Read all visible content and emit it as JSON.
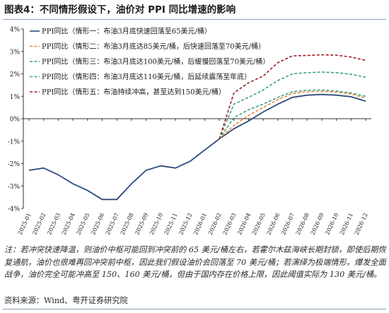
{
  "figure_title": "图表4：不同情形假设下，油价对 PPI 同比增速的影响",
  "note": "注：若冲突快速降温，则油价中枢可能回到冲突前的 65 美元/桶左右，若霍尔木兹海峡长期封锁，即使后期恢复通航，油价也很难再回冲突前中枢，因此我们假设油价会回落至 70 美元/桶；若演绎为极端情形，爆发全面战争，油价完全可能冲高至 150、160 美元/桶，但由于国内存在价格上限，因此阈值实际为 130 美元/桶。",
  "source": "资料来源：Wind、粤开证券研究院",
  "colors": {
    "s1": "#2e4a7d",
    "s2": "#e98a3b",
    "s3": "#3aa17e",
    "s4": "#3aa17e",
    "s5": "#a0202a",
    "axis": "#333333"
  },
  "chart_data": {
    "type": "line",
    "ylim": [
      -0.04,
      0.04
    ],
    "y_ticks": [
      "4%",
      "3%",
      "2%",
      "1%",
      "0%",
      "-1%",
      "-2%",
      "-3%",
      "-4%"
    ],
    "x_ticks": [
      "2025-01",
      "2025-02",
      "2025-03",
      "2025-04",
      "2025-05",
      "2025-06",
      "2025-07",
      "2025-08",
      "2025-09",
      "2025-10",
      "2025-11",
      "2025-12",
      "2026-01",
      "2026-02",
      "2026-03",
      "2026-04",
      "2026-05",
      "2026-06",
      "2026-07",
      "2026-08",
      "2026-09",
      "2026-10",
      "2026-11",
      "2026-12"
    ],
    "legend_position": "top-left",
    "series": [
      {
        "name": "PPI同比（情形一：布油3月底快速回落至65美元/桶）",
        "style": "solid",
        "values": [
          -0.023,
          -0.022,
          -0.025,
          -0.029,
          -0.032,
          -0.036,
          -0.036,
          -0.029,
          -0.023,
          -0.021,
          -0.022,
          -0.019,
          -0.014,
          -0.009,
          -0.0045,
          -0.001,
          0.003,
          0.0065,
          0.0095,
          0.0105,
          0.0108,
          0.0105,
          0.0098,
          0.0078
        ]
      },
      {
        "name": "PPI同比（情形二：布油3月底达85美元/桶，后快速回落至70美元/桶）",
        "style": "dashed",
        "values": [
          null,
          null,
          null,
          null,
          null,
          null,
          null,
          null,
          null,
          null,
          null,
          null,
          null,
          -0.009,
          -0.003,
          0.0015,
          0.005,
          0.0085,
          0.0112,
          0.012,
          0.0122,
          0.0118,
          0.011,
          0.0092
        ]
      },
      {
        "name": "PPI同比（情形三：布油3月底达100美元/桶，后缓慢回落至70美元/桶）",
        "style": "dashed",
        "values": [
          null,
          null,
          null,
          null,
          null,
          null,
          null,
          null,
          null,
          null,
          null,
          null,
          null,
          -0.009,
          0.0005,
          0.004,
          0.0065,
          0.0095,
          0.012,
          0.0127,
          0.0128,
          0.0123,
          0.0115,
          0.01
        ]
      },
      {
        "name": "PPI同比（情形四：布油3月底达110美元/桶，后延续震荡至年底）",
        "style": "dashed",
        "values": [
          null,
          null,
          null,
          null,
          null,
          null,
          null,
          null,
          null,
          null,
          null,
          null,
          null,
          -0.009,
          0.0065,
          0.0095,
          0.0128,
          0.017,
          0.02,
          0.0205,
          0.0208,
          0.0205,
          0.0198,
          0.0185
        ]
      },
      {
        "name": "PPI同比（情形五：布油持续冲高，甚至达到150美元/桶）",
        "style": "dashed",
        "values": [
          null,
          null,
          null,
          null,
          null,
          null,
          null,
          null,
          null,
          null,
          null,
          null,
          null,
          -0.009,
          0.0115,
          0.016,
          0.019,
          0.025,
          0.028,
          0.0282,
          0.0285,
          0.0283,
          0.0275,
          0.026
        ]
      }
    ]
  }
}
